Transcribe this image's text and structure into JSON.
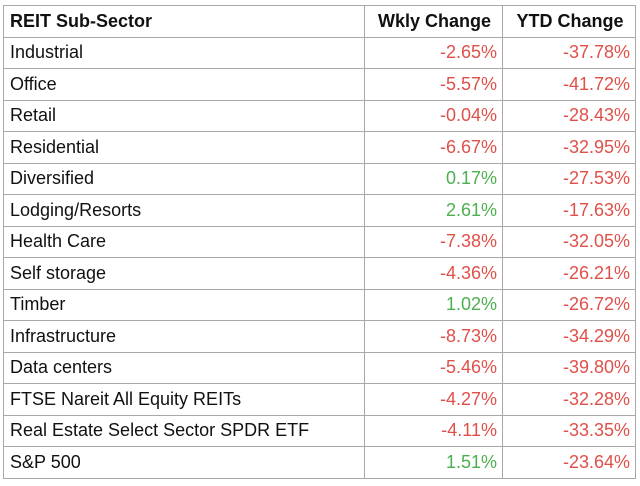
{
  "headers": [
    "REIT Sub-Sector",
    "Wkly Change",
    "YTD Change"
  ],
  "colors": {
    "negative": "#e0504a",
    "positive": "#4caf50",
    "border": "#a8a8a8"
  },
  "rows": [
    {
      "sector": "Industrial",
      "wkly": "-2.65%",
      "ytd": "-37.78%"
    },
    {
      "sector": "Office",
      "wkly": "-5.57%",
      "ytd": "-41.72%"
    },
    {
      "sector": "Retail",
      "wkly": "-0.04%",
      "ytd": "-28.43%"
    },
    {
      "sector": "Residential",
      "wkly": "-6.67%",
      "ytd": "-32.95%"
    },
    {
      "sector": "Diversified",
      "wkly": "0.17%",
      "ytd": "-27.53%"
    },
    {
      "sector": "Lodging/Resorts",
      "wkly": "2.61%",
      "ytd": "-17.63%"
    },
    {
      "sector": "Health Care",
      "wkly": "-7.38%",
      "ytd": "-32.05%"
    },
    {
      "sector": "Self storage",
      "wkly": "-4.36%",
      "ytd": "-26.21%"
    },
    {
      "sector": "Timber",
      "wkly": "1.02%",
      "ytd": "-26.72%"
    },
    {
      "sector": "Infrastructure",
      "wkly": "-8.73%",
      "ytd": "-34.29%"
    },
    {
      "sector": "Data centers",
      "wkly": "-5.46%",
      "ytd": "-39.80%"
    },
    {
      "sector": "FTSE Nareit All Equity REITs",
      "wkly": "-4.27%",
      "ytd": "-32.28%"
    },
    {
      "sector": "Real Estate Select Sector SPDR ETF",
      "wkly": "-4.11%",
      "ytd": "-33.35%"
    },
    {
      "sector": "S&P 500",
      "wkly": "1.51%",
      "ytd": "-23.64%"
    }
  ]
}
